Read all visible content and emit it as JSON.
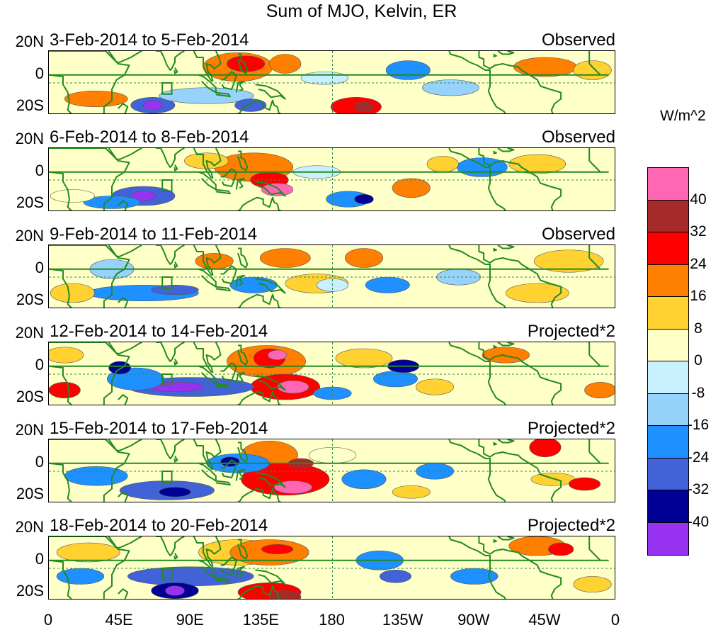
{
  "title": "Sum of MJO, Kelvin, ER",
  "panels": [
    {
      "date_range": "3-Feb-2014 to 5-Feb-2014",
      "status": "Observed"
    },
    {
      "date_range": "6-Feb-2014 to 8-Feb-2014",
      "status": "Observed"
    },
    {
      "date_range": "9-Feb-2014 to 11-Feb-2014",
      "status": "Observed"
    },
    {
      "date_range": "12-Feb-2014 to 14-Feb-2014",
      "status": "Projected*2"
    },
    {
      "date_range": "15-Feb-2014 to 17-Feb-2014",
      "status": "Projected*2"
    },
    {
      "date_range": "18-Feb-2014 to 20-Feb-2014",
      "status": "Projected*2"
    }
  ],
  "y_axis_labels": [
    "20N",
    "0",
    "20S"
  ],
  "x_axis_labels": [
    "0",
    "45E",
    "90E",
    "135E",
    "180",
    "135W",
    "90W",
    "45W",
    "0"
  ],
  "colorbar": {
    "units": "W/m^2",
    "labels": [
      "40",
      "32",
      "24",
      "16",
      "8",
      "0",
      "-8",
      "-16",
      "-24",
      "-32",
      "-40"
    ],
    "colors": [
      "#ff66b4",
      "#a52a2a",
      "#ff0000",
      "#ff7f00",
      "#ffd232",
      "#ffffc8",
      "#c8f0ff",
      "#96d2fa",
      "#1e90ff",
      "#4163d7",
      "#000096",
      "#9632f0"
    ]
  },
  "map_colors": {
    "coast": "#228b22",
    "grid_line": "#2e8b57"
  }
}
